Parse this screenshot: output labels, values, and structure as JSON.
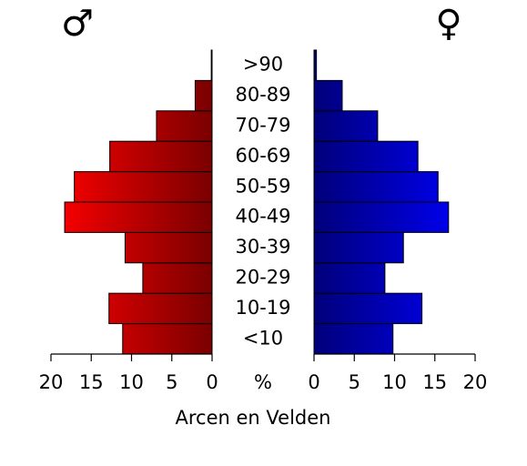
{
  "chart_data": {
    "type": "pyramid",
    "title": "Arcen en Velden",
    "unit_label": "%",
    "categories": [
      "<10",
      "10-19",
      "20-29",
      "30-39",
      "40-49",
      "50-59",
      "60-69",
      "70-79",
      "80-89",
      ">90"
    ],
    "series": [
      {
        "name": "♂",
        "color": [
          "#ff0000",
          "#7a0000"
        ],
        "values": [
          11.1,
          12.8,
          8.6,
          10.8,
          18.3,
          17.1,
          12.7,
          6.9,
          2.1,
          0.1
        ]
      },
      {
        "name": "♀",
        "color": [
          "#00007a",
          "#0000ff"
        ],
        "values": [
          9.8,
          13.4,
          8.8,
          11.1,
          16.7,
          15.4,
          12.9,
          7.9,
          3.5,
          0.3
        ]
      }
    ],
    "xlim": [
      0,
      20
    ],
    "xticks": [
      0,
      5,
      10,
      15,
      20
    ]
  }
}
